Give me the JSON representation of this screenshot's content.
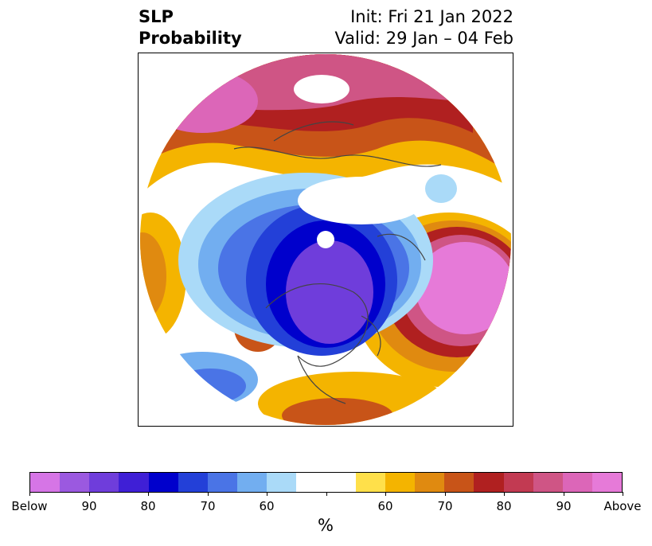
{
  "title": {
    "left_line1": "SLP",
    "left_line2": "Probability",
    "right_line1": "Init: Fri 21 Jan 2022",
    "right_line2": "Valid: 29 Jan – 04 Feb"
  },
  "colorbar": {
    "colors": [
      "#d675e6",
      "#9b59e0",
      "#6f3ddb",
      "#3f1fd6",
      "#0000cc",
      "#2340d8",
      "#4a74e6",
      "#72aef0",
      "#aadaf8",
      "#ffffff",
      "#ffffff",
      "#ffe04a",
      "#f4b400",
      "#e08a10",
      "#c85418",
      "#b02020",
      "#c23a52",
      "#cf5585",
      "#dc66b8",
      "#e67ad8"
    ],
    "tick_labels": [
      "Below",
      "90",
      "80",
      "70",
      "60",
      "",
      "60",
      "70",
      "80",
      "90",
      "Above"
    ],
    "units": "%"
  },
  "map": {
    "pole_marker": "north-pole-dot",
    "below_color": "#3f1fd6",
    "above_color": "#e67ad8"
  }
}
